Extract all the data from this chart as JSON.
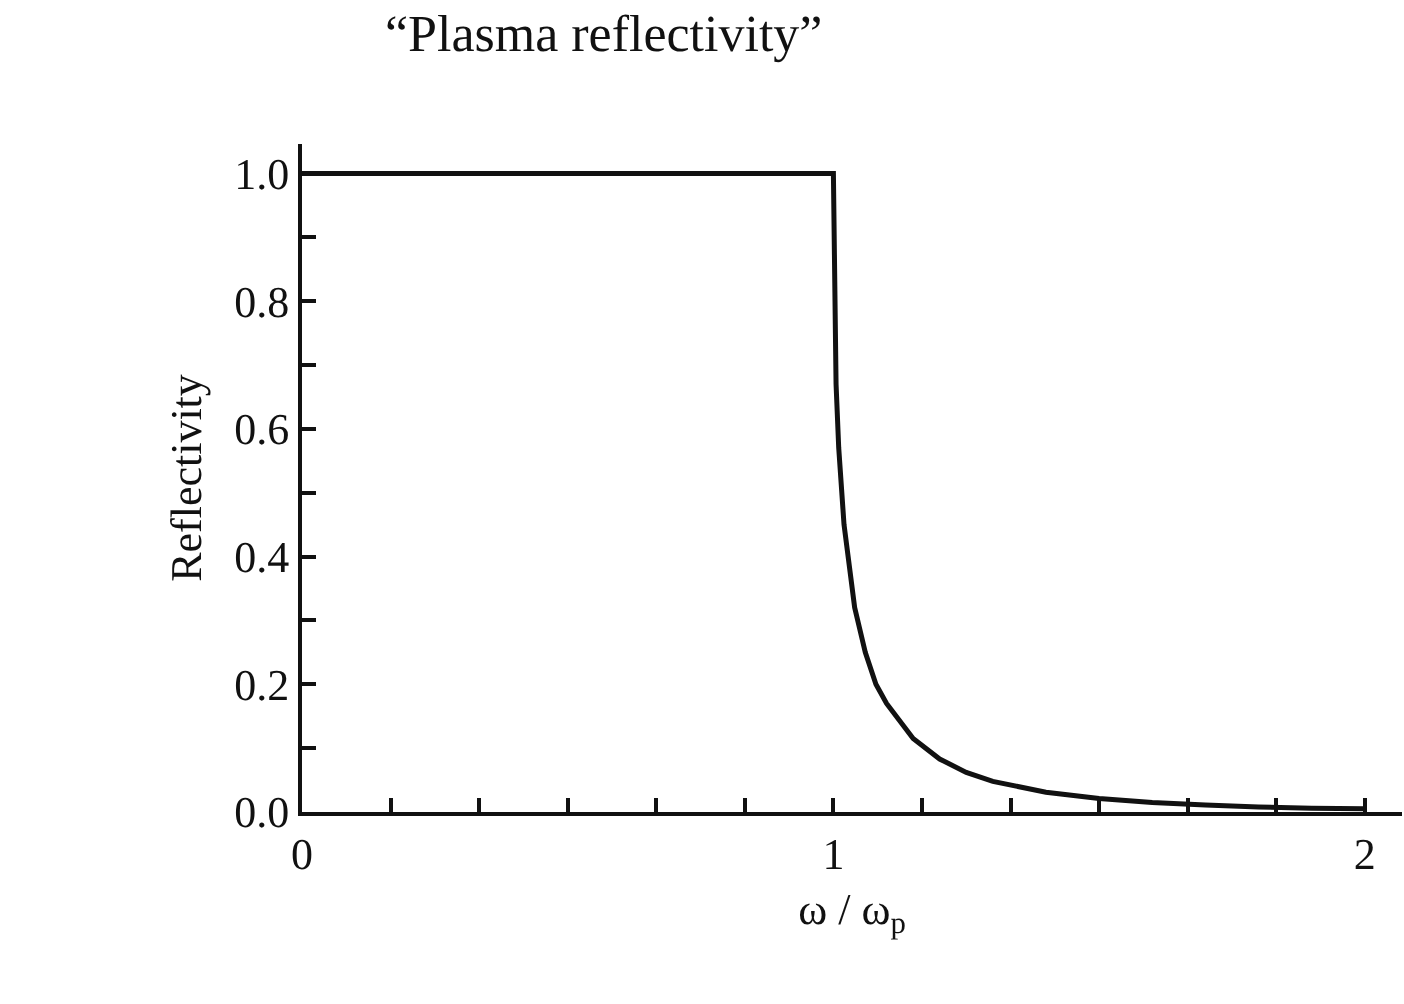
{
  "chart_data": {
    "type": "line",
    "title": "“Plasma reflectivity”",
    "xlabel": "ω / ω$_{p}$",
    "ylabel": "Reflectivity",
    "x": [
      0,
      1.0,
      1.005,
      1.01,
      1.02,
      1.04,
      1.06,
      1.08,
      1.1,
      1.15,
      1.2,
      1.25,
      1.3,
      1.4,
      1.5,
      1.6,
      1.7,
      1.8,
      1.9,
      2.0
    ],
    "series": [
      {
        "color": "#111111",
        "values": [
          1.0,
          1.0,
          0.67,
          0.57,
          0.45,
          0.32,
          0.25,
          0.2,
          0.17,
          0.115,
          0.083,
          0.062,
          0.048,
          0.031,
          0.021,
          0.015,
          0.011,
          0.008,
          0.006,
          0.005
        ]
      }
    ],
    "xlim": [
      0,
      2.07
    ],
    "ylim": [
      0,
      1.046
    ],
    "xticks": [
      0,
      {
        "value": 0.1667,
        "label": null
      },
      {
        "value": 0.3333,
        "label": null
      },
      {
        "value": 0.5,
        "label": null
      },
      {
        "value": 0.6667,
        "label": null
      },
      {
        "value": 0.8333,
        "label": null
      },
      1,
      {
        "value": 1.1667,
        "label": null
      },
      {
        "value": 1.3333,
        "label": null
      },
      {
        "value": 1.5,
        "label": null
      },
      {
        "value": 1.6667,
        "label": null
      },
      {
        "value": 1.8333,
        "label": null
      },
      2
    ],
    "yticks": [
      {
        "value": 0,
        "label": "0.0"
      },
      {
        "value": 0.1,
        "label": null
      },
      {
        "value": 0.2,
        "label": "0.2"
      },
      {
        "value": 0.3,
        "label": null
      },
      {
        "value": 0.4,
        "label": "0.4"
      },
      {
        "value": 0.5,
        "label": null
      },
      {
        "value": 0.6,
        "label": "0.6"
      },
      {
        "value": 0.7,
        "label": null
      },
      {
        "value": 0.8,
        "label": "0.8"
      },
      {
        "value": 0.9,
        "label": null
      },
      {
        "value": 1,
        "label": "1.0"
      }
    ],
    "legend": false,
    "marker": "none",
    "line_style": "solid"
  }
}
